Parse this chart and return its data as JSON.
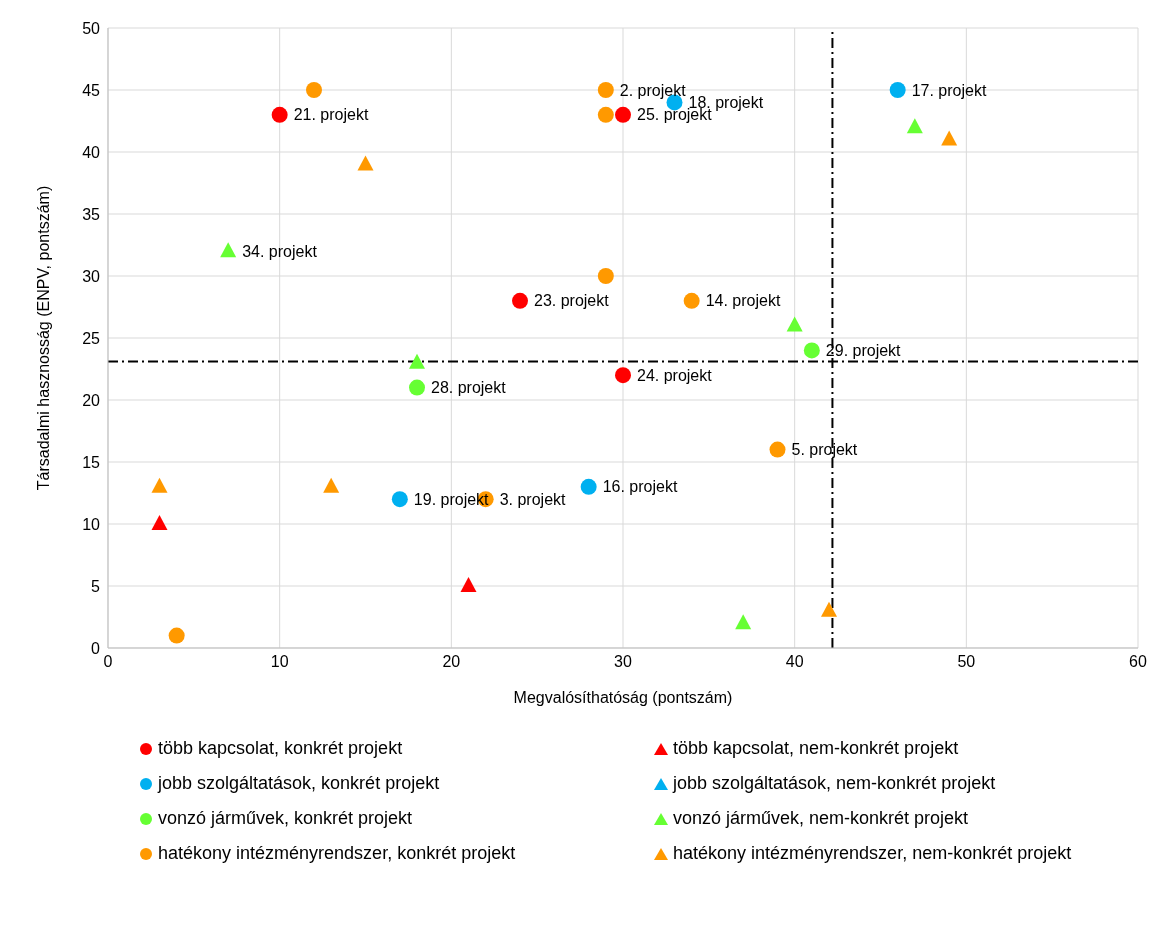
{
  "chart_data": {
    "type": "scatter",
    "xlabel": "Megvalósíthatóság (pontszám)",
    "ylabel": "Társadalmi hasznosság (ENPV, pontszám)",
    "xlim": [
      0,
      60
    ],
    "xticks": [
      0,
      10,
      20,
      30,
      40,
      50,
      60
    ],
    "ylim": [
      0,
      50
    ],
    "yticks": [
      0,
      5,
      10,
      15,
      20,
      25,
      30,
      35,
      40,
      45,
      50
    ],
    "grid": true,
    "legend": "bottom",
    "series": [
      {
        "name": "több kapcsolat, konkrét projekt",
        "color": "#ff0000",
        "marker": "circle",
        "x": [
          10,
          30,
          24,
          30
        ],
        "values": [
          43,
          43,
          28,
          22
        ]
      },
      {
        "name": "több kapcsolat, nem-konkrét projekt",
        "color": "#ff0000",
        "marker": "triangle",
        "x": [
          3,
          21
        ],
        "values": [
          10,
          5
        ]
      },
      {
        "name": "jobb szolgáltatások, konkrét projekt",
        "color": "#00b0f0",
        "marker": "circle",
        "x": [
          33,
          46,
          17,
          28
        ],
        "values": [
          44,
          45,
          12,
          13
        ]
      },
      {
        "name": "jobb szolgáltatások, nem-konkrét projekt",
        "color": "#00b0f0",
        "marker": "triangle"
      },
      {
        "name": "vonzó járművek, konkrét projekt",
        "color": "#66ff33",
        "marker": "circle",
        "x": [
          41,
          18
        ],
        "values": [
          24,
          21
        ]
      },
      {
        "name": "vonzó járművek, nem-konkrét projekt",
        "color": "#66ff33",
        "marker": "triangle",
        "x": [
          7,
          47,
          40,
          18,
          37
        ],
        "values": [
          32,
          42,
          26,
          23,
          2
        ]
      },
      {
        "name": "hatékony intézményrendszer, konkrét projekt",
        "color": "#ff9900",
        "marker": "circle",
        "x": [
          12,
          29,
          29,
          29,
          34,
          39,
          22,
          4
        ],
        "values": [
          45,
          45,
          43,
          30,
          28,
          16,
          12,
          1
        ]
      },
      {
        "name": "hatékony intézményrendszer, nem-konkrét projekt",
        "color": "#ff9900",
        "marker": "triangle",
        "x": [
          15,
          49,
          3,
          13,
          42
        ],
        "values": [
          39,
          41,
          13,
          13,
          3
        ]
      }
    ],
    "ref_lines": [
      {
        "axis": "x",
        "value": 42.2,
        "color": "#000000",
        "line_style": "dashed"
      },
      {
        "axis": "y",
        "value": 23.1,
        "color": "#000000",
        "line_style": "dashed"
      }
    ],
    "annotations": [
      {
        "text": "21. projekt",
        "x": 10,
        "y": 43
      },
      {
        "text": "25. projekt",
        "x": 30,
        "y": 43
      },
      {
        "text": "23. projekt",
        "x": 24,
        "y": 28
      },
      {
        "text": "24. projekt",
        "x": 30,
        "y": 22
      },
      {
        "text": "18. projekt",
        "x": 33,
        "y": 44
      },
      {
        "text": "17. projekt",
        "x": 46,
        "y": 45
      },
      {
        "text": "19. projekt",
        "x": 17,
        "y": 12
      },
      {
        "text": "16. projekt",
        "x": 28,
        "y": 13
      },
      {
        "text": "29. projekt",
        "x": 41,
        "y": 24
      },
      {
        "text": "28. projekt",
        "x": 18,
        "y": 21
      },
      {
        "text": "34. projekt",
        "x": 7,
        "y": 32
      },
      {
        "text": "2. projekt",
        "x": 29,
        "y": 45
      },
      {
        "text": "14. projekt",
        "x": 34,
        "y": 28
      },
      {
        "text": "5. projekt",
        "x": 39,
        "y": 16
      },
      {
        "text": "3. projekt",
        "x": 22,
        "y": 12
      }
    ]
  }
}
